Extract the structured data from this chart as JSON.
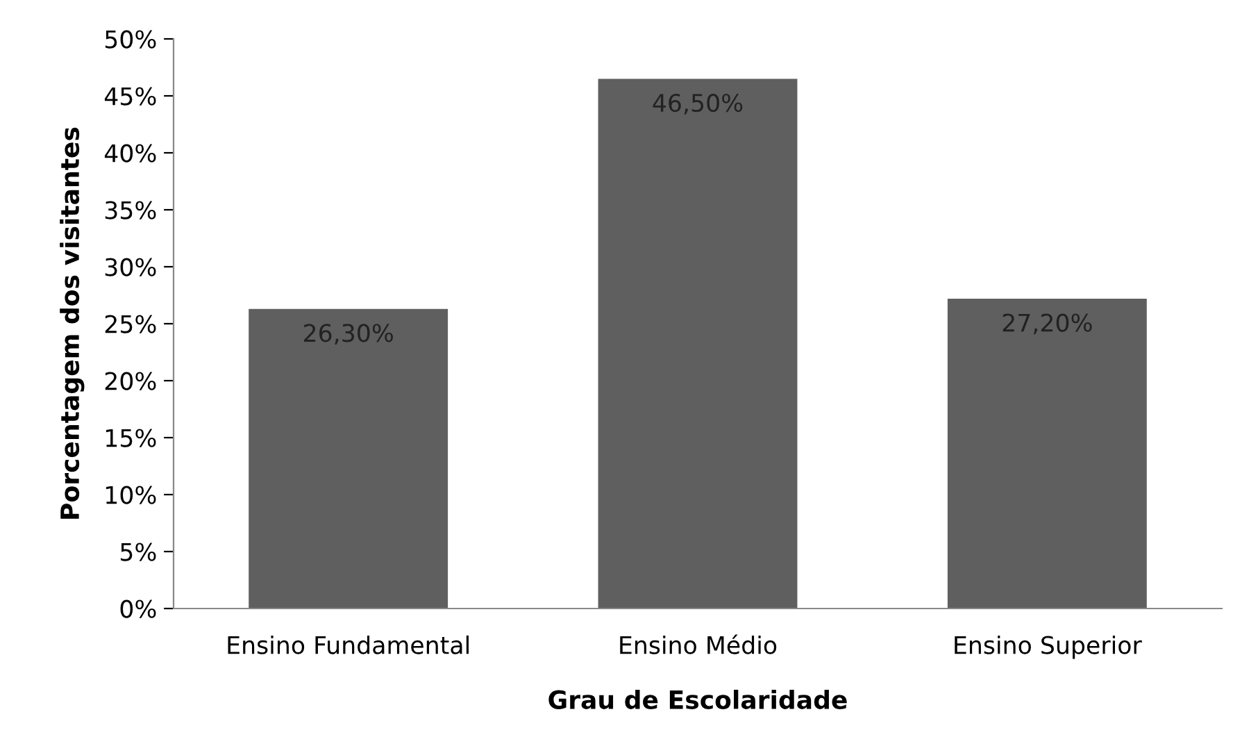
{
  "chart_data": {
    "type": "bar",
    "xlabel": "Grau de Escolaridade",
    "ylabel": "Porcentagem dos visitantes",
    "categories": [
      "Ensino Fundamental",
      "Ensino Médio",
      "Ensino Superior"
    ],
    "values": [
      26.3,
      46.5,
      27.2
    ],
    "color": "#5f5f5f",
    "value_labels": [
      "26,30%",
      "46,50%",
      "27,20%"
    ],
    "ylim": [
      0,
      50
    ],
    "yticks": [
      {
        "value": 0,
        "label": "0%"
      },
      {
        "value": 5,
        "label": "5%"
      },
      {
        "value": 10,
        "label": "10%"
      },
      {
        "value": 15,
        "label": "15%"
      },
      {
        "value": 20,
        "label": "20%"
      },
      {
        "value": 25,
        "label": "25%"
      },
      {
        "value": 30,
        "label": "30%"
      },
      {
        "value": 35,
        "label": "35%"
      },
      {
        "value": 40,
        "label": "40%"
      },
      {
        "value": 45,
        "label": "45%"
      },
      {
        "value": 50,
        "label": "50%"
      }
    ],
    "grid": false,
    "legend": false
  }
}
